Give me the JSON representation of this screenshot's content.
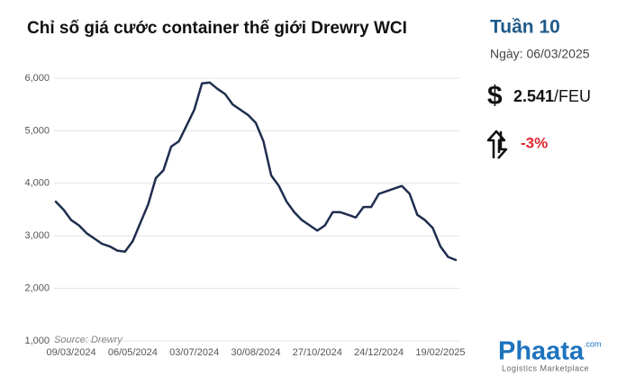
{
  "chart_data": {
    "type": "line",
    "title": "Chỉ số giá cước container thế giới Drewry WCI",
    "source": "Source: Drewry",
    "week": "Tuần 10",
    "date": "Ngày: 06/03/2025",
    "currency_symbol": "$",
    "price": "2.541",
    "price_unit": "/FEU",
    "change": "-3%",
    "brand": "Phaata",
    "brand_suffix": ".com",
    "brand_tagline": "Logistics Marketplace",
    "categories": [
      null,
      null,
      "09/03/2024",
      null,
      null,
      null,
      null,
      null,
      null,
      null,
      "06/05/2024",
      null,
      null,
      null,
      null,
      null,
      null,
      null,
      "03/07/2024",
      null,
      null,
      null,
      null,
      null,
      null,
      null,
      "30/08/2024",
      null,
      null,
      null,
      null,
      null,
      null,
      null,
      "27/10/2024",
      null,
      null,
      null,
      null,
      null,
      null,
      null,
      "24/12/2024",
      null,
      null,
      null,
      null,
      null,
      null,
      null,
      "19/02/2025",
      null,
      null
    ],
    "series": [
      {
        "color": "#1f2d4f",
        "values": [
          3650,
          3500,
          3300,
          3200,
          3050,
          2950,
          2850,
          2800,
          2720,
          2700,
          2900,
          3250,
          3600,
          4100,
          4250,
          4700,
          4800,
          5100,
          5400,
          5900,
          5920,
          5800,
          5700,
          5500,
          5400,
          5300,
          5150,
          4800,
          4150,
          3950,
          3650,
          3450,
          3300,
          3200,
          3100,
          3200,
          3450,
          3450,
          3400,
          3350,
          3550,
          3550,
          3800,
          3850,
          3900,
          3950,
          3800,
          3400,
          3300,
          3150,
          2800,
          2600,
          2541
        ]
      }
    ],
    "ylim": [
      1000,
      6000
    ],
    "yticks": [
      {
        "value": 1000,
        "label": "1,000"
      },
      {
        "value": 2000,
        "label": "2,000"
      },
      {
        "value": 3000,
        "label": "3,000"
      },
      {
        "value": 4000,
        "label": "4,000"
      },
      {
        "value": 5000,
        "label": "5,000"
      },
      {
        "value": 6000,
        "label": "6,000"
      }
    ],
    "grid": true
  }
}
